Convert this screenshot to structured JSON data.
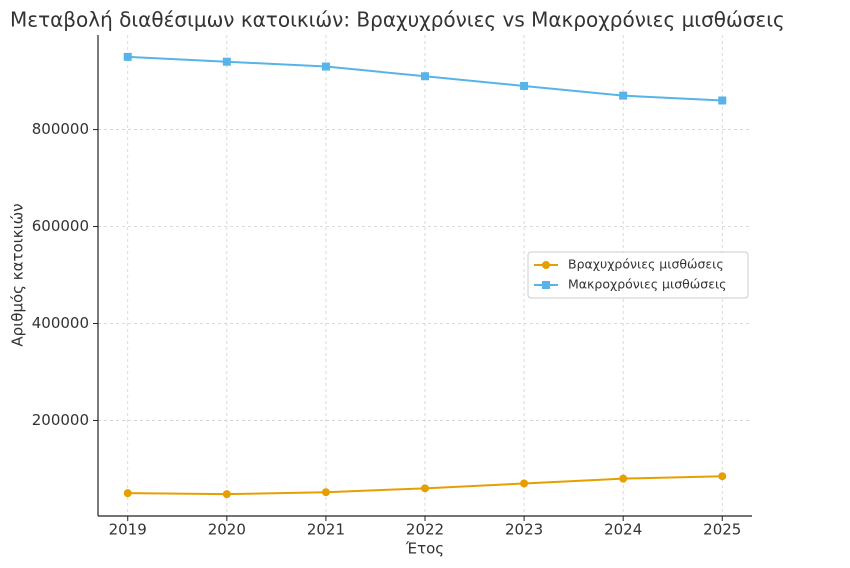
{
  "chart_data": {
    "type": "line",
    "title": "Μεταβολή διαθέσιμων κατοικιών: Βραχυχρόνιες vs Μακροχρόνιες μισθώσεις",
    "x_label": "Έτος",
    "y_label": "Αριθμός κατοικιών",
    "x": [
      2019,
      2020,
      2021,
      2022,
      2023,
      2024,
      2025
    ],
    "series": [
      {
        "name": "Βραχυχρόνιες μισθώσεις",
        "color": "#e69f00",
        "marker": "circle",
        "values": [
          50000,
          48000,
          52000,
          60000,
          70000,
          80000,
          85000
        ]
      },
      {
        "name": "Μακροχρόνιες μισθώσεις",
        "color": "#56b4e9",
        "marker": "square",
        "values": [
          950000,
          940000,
          930000,
          910000,
          890000,
          870000,
          860000
        ]
      }
    ],
    "xlim": [
      2018.7,
      2025.3
    ],
    "xticks": [
      2019,
      2020,
      2021,
      2022,
      2023,
      2024,
      2025
    ],
    "ylim": [
      2900,
      995100
    ],
    "yticks": [
      200000,
      400000,
      600000,
      800000
    ],
    "grid": true,
    "legend": "center right"
  }
}
